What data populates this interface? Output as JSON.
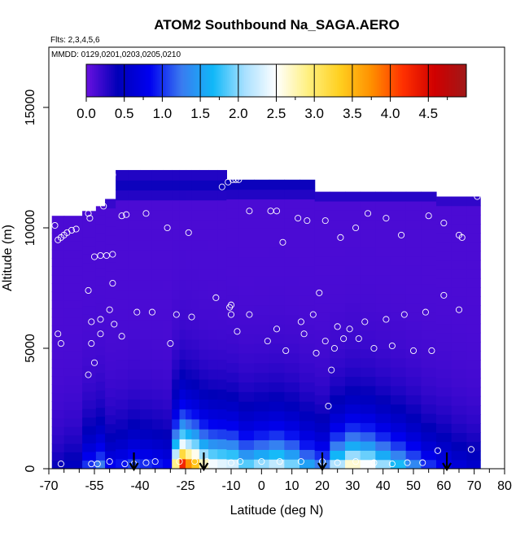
{
  "chart_data": {
    "type": "heatmap",
    "title": "ATOM2 Southbound Na_SAGA.AERO",
    "flights_note": "Flts: 2,3,4,5,6",
    "dates_note": "MMDD: 0129,0201,0203,0205,0210",
    "xlabel": "Latitude (deg N)",
    "ylabel": "Altitude (m)",
    "xlim": [
      -70,
      80
    ],
    "ylim": [
      0,
      17500
    ],
    "x_ticks": [
      -70,
      -55,
      -40,
      -25,
      -10,
      0,
      10,
      20,
      30,
      40,
      50,
      60,
      70,
      80
    ],
    "x_minor_ticks": [
      -65,
      -60,
      -50,
      -45,
      -35,
      -30,
      -20,
      -15,
      -5,
      5,
      15,
      25,
      35,
      45,
      55,
      65,
      75
    ],
    "y_ticks": [
      0,
      5000,
      10000,
      15000
    ],
    "colorbar": {
      "min": 0,
      "max": 5,
      "ticks": [
        0.0,
        0.5,
        1.0,
        1.5,
        2.0,
        2.5,
        3.0,
        3.5,
        4.0,
        4.5
      ],
      "tick_labels": [
        "0.0",
        "0.5",
        "1.0",
        "1.5",
        "2.0",
        "2.5",
        "3.0",
        "3.5",
        "4.0",
        "4.5"
      ],
      "colors": [
        "#6a10e0",
        "#0000b8",
        "#0000f0",
        "#3a7af0",
        "#10b8f8",
        "#a8e0ff",
        "#ffffff",
        "#fff080",
        "#ffd020",
        "#ff9000",
        "#ff3000",
        "#d00000",
        "#a01818"
      ]
    },
    "downward_arrows_lat": [
      -42,
      -19,
      20,
      61
    ],
    "field_columns": [
      {
        "lat": -68,
        "top": 10500,
        "boundary": 0.3
      },
      {
        "lat": -62,
        "top": 10500,
        "boundary": 0.4
      },
      {
        "lat": -56,
        "top": 10700,
        "boundary": 1.0
      },
      {
        "lat": -53,
        "top": 10900,
        "boundary": 1.3
      },
      {
        "lat": -50,
        "top": 11200,
        "boundary": 0.8
      },
      {
        "lat": -46,
        "top": 12400,
        "boundary": 0.9
      },
      {
        "lat": -42,
        "top": 12400,
        "boundary": 1.1
      },
      {
        "lat": -38,
        "top": 12400,
        "boundary": 1.0
      },
      {
        "lat": -34,
        "top": 12400,
        "boundary": 0.9
      },
      {
        "lat": -31,
        "top": 12400,
        "boundary": 0.8
      },
      {
        "lat": -28,
        "top": 12400,
        "boundary": 3.2
      },
      {
        "lat": -26,
        "top": 12400,
        "boundary": 4.8
      },
      {
        "lat": -24,
        "top": 12400,
        "boundary": 4.2
      },
      {
        "lat": -22,
        "top": 12400,
        "boundary": 3.8
      },
      {
        "lat": -19,
        "top": 12400,
        "boundary": 3.0
      },
      {
        "lat": -16,
        "top": 12400,
        "boundary": 2.7
      },
      {
        "lat": -13,
        "top": 12400,
        "boundary": 2.6
      },
      {
        "lat": -10,
        "top": 12000,
        "boundary": 2.5
      },
      {
        "lat": -5,
        "top": 12000,
        "boundary": 2.0
      },
      {
        "lat": 0,
        "top": 12000,
        "boundary": 2.2
      },
      {
        "lat": 5,
        "top": 12000,
        "boundary": 2.4
      },
      {
        "lat": 10,
        "top": 12000,
        "boundary": 2.1
      },
      {
        "lat": 15,
        "top": 12000,
        "boundary": 1.6
      },
      {
        "lat": 20,
        "top": 11500,
        "boundary": 1.3
      },
      {
        "lat": 25,
        "top": 11500,
        "boundary": 2.3
      },
      {
        "lat": 30,
        "top": 11500,
        "boundary": 2.9
      },
      {
        "lat": 35,
        "top": 11500,
        "boundary": 2.7
      },
      {
        "lat": 40,
        "top": 11500,
        "boundary": 2.2
      },
      {
        "lat": 45,
        "top": 11500,
        "boundary": 1.8
      },
      {
        "lat": 50,
        "top": 11500,
        "boundary": 1.4
      },
      {
        "lat": 55,
        "top": 11500,
        "boundary": 1.0
      },
      {
        "lat": 60,
        "top": 11300,
        "boundary": 0.8
      },
      {
        "lat": 65,
        "top": 11300,
        "boundary": 0.6
      },
      {
        "lat": 70,
        "top": 11300,
        "boundary": 0.5
      }
    ],
    "flight_samples": [
      {
        "lat": -68,
        "alt": 10100
      },
      {
        "lat": -67,
        "alt": 9500
      },
      {
        "lat": -66,
        "alt": 9600
      },
      {
        "lat": -65,
        "alt": 9700
      },
      {
        "lat": -64,
        "alt": 9800
      },
      {
        "lat": -62.5,
        "alt": 9900
      },
      {
        "lat": -61,
        "alt": 9950
      },
      {
        "lat": -57,
        "alt": 10600
      },
      {
        "lat": -56.5,
        "alt": 10400
      },
      {
        "lat": -55,
        "alt": 8800
      },
      {
        "lat": -53,
        "alt": 8850
      },
      {
        "lat": -51,
        "alt": 8850
      },
      {
        "lat": -49,
        "alt": 8900
      },
      {
        "lat": -54,
        "alt": 11800
      },
      {
        "lat": -52,
        "alt": 12000
      },
      {
        "lat": -49,
        "alt": 12200
      },
      {
        "lat": -52,
        "alt": 10900
      },
      {
        "lat": -46,
        "alt": 10500
      },
      {
        "lat": -44.5,
        "alt": 10550
      },
      {
        "lat": -38,
        "alt": 10600
      },
      {
        "lat": -31,
        "alt": 10000
      },
      {
        "lat": -24,
        "alt": 9800
      },
      {
        "lat": -13,
        "alt": 11700
      },
      {
        "lat": -11,
        "alt": 11900
      },
      {
        "lat": -9.5,
        "alt": 12000
      },
      {
        "lat": -8.5,
        "alt": 12000
      },
      {
        "lat": -7.5,
        "alt": 12000
      },
      {
        "lat": -4,
        "alt": 10700
      },
      {
        "lat": 3,
        "alt": 10700
      },
      {
        "lat": 5,
        "alt": 10700
      },
      {
        "lat": 7,
        "alt": 9400
      },
      {
        "lat": 12,
        "alt": 10400
      },
      {
        "lat": 15,
        "alt": 10300
      },
      {
        "lat": 21,
        "alt": 10300
      },
      {
        "lat": 26,
        "alt": 9600
      },
      {
        "lat": 31,
        "alt": 10000
      },
      {
        "lat": 35,
        "alt": 10600
      },
      {
        "lat": 41,
        "alt": 10400
      },
      {
        "lat": 46,
        "alt": 9700
      },
      {
        "lat": 55,
        "alt": 10500
      },
      {
        "lat": 60,
        "alt": 10200
      },
      {
        "lat": 65,
        "alt": 9700
      },
      {
        "lat": 66,
        "alt": 9600
      },
      {
        "lat": 71,
        "alt": 11300
      },
      {
        "lat": 74,
        "alt": 11200
      },
      {
        "lat": -49,
        "alt": 7700
      },
      {
        "lat": -57,
        "alt": 7400
      },
      {
        "lat": -50,
        "alt": 6600
      },
      {
        "lat": -48.5,
        "alt": 6000
      },
      {
        "lat": -56,
        "alt": 6100
      },
      {
        "lat": -53,
        "alt": 6200
      },
      {
        "lat": -41,
        "alt": 6500
      },
      {
        "lat": -36,
        "alt": 6500
      },
      {
        "lat": -28,
        "alt": 6400
      },
      {
        "lat": -23,
        "alt": 6300
      },
      {
        "lat": -15,
        "alt": 7100
      },
      {
        "lat": -10,
        "alt": 6800
      },
      {
        "lat": -10.5,
        "alt": 6700
      },
      {
        "lat": -10,
        "alt": 6400
      },
      {
        "lat": -4,
        "alt": 6400
      },
      {
        "lat": -8,
        "alt": 5700
      },
      {
        "lat": 2,
        "alt": 5300
      },
      {
        "lat": 5,
        "alt": 5800
      },
      {
        "lat": 8,
        "alt": 4900
      },
      {
        "lat": 13,
        "alt": 6100
      },
      {
        "lat": 14,
        "alt": 5600
      },
      {
        "lat": 17,
        "alt": 6400
      },
      {
        "lat": 18,
        "alt": 4800
      },
      {
        "lat": 19,
        "alt": 7300
      },
      {
        "lat": 21,
        "alt": 5300
      },
      {
        "lat": 23,
        "alt": 4100
      },
      {
        "lat": 24,
        "alt": 5000
      },
      {
        "lat": 25,
        "alt": 5900
      },
      {
        "lat": 27,
        "alt": 5400
      },
      {
        "lat": 29,
        "alt": 5800
      },
      {
        "lat": 32,
        "alt": 5400
      },
      {
        "lat": 34,
        "alt": 6100
      },
      {
        "lat": 37,
        "alt": 5000
      },
      {
        "lat": 41,
        "alt": 6200
      },
      {
        "lat": 43,
        "alt": 5100
      },
      {
        "lat": 47,
        "alt": 6400
      },
      {
        "lat": 50,
        "alt": 4900
      },
      {
        "lat": 54,
        "alt": 6500
      },
      {
        "lat": 56,
        "alt": 4900
      },
      {
        "lat": 60,
        "alt": 7200
      },
      {
        "lat": 65,
        "alt": 6600
      },
      {
        "lat": -67,
        "alt": 5600
      },
      {
        "lat": -66,
        "alt": 5200
      },
      {
        "lat": -56,
        "alt": 5200
      },
      {
        "lat": -53,
        "alt": 5600
      },
      {
        "lat": -46,
        "alt": 5500
      },
      {
        "lat": -30,
        "alt": 5200
      },
      {
        "lat": -57,
        "alt": 3900
      },
      {
        "lat": -55,
        "alt": 4400
      },
      {
        "lat": 22,
        "alt": 2600
      },
      {
        "lat": -66,
        "alt": 200
      },
      {
        "lat": -56,
        "alt": 200
      },
      {
        "lat": -54,
        "alt": 200
      },
      {
        "lat": -50,
        "alt": 300
      },
      {
        "lat": -45,
        "alt": 200
      },
      {
        "lat": -42,
        "alt": 200
      },
      {
        "lat": -38,
        "alt": 250
      },
      {
        "lat": -35,
        "alt": 300
      },
      {
        "lat": -27,
        "alt": 300
      },
      {
        "lat": -22,
        "alt": 300
      },
      {
        "lat": -18,
        "alt": 300
      },
      {
        "lat": -10,
        "alt": 250
      },
      {
        "lat": -7,
        "alt": 300
      },
      {
        "lat": 0,
        "alt": 300
      },
      {
        "lat": 6,
        "alt": 300
      },
      {
        "lat": 13,
        "alt": 300
      },
      {
        "lat": 20,
        "alt": 300
      },
      {
        "lat": 25,
        "alt": 250
      },
      {
        "lat": 31,
        "alt": 300
      },
      {
        "lat": 37,
        "alt": 250
      },
      {
        "lat": 43,
        "alt": 200
      },
      {
        "lat": 48,
        "alt": 250
      },
      {
        "lat": 53,
        "alt": 250
      },
      {
        "lat": 58,
        "alt": 750
      },
      {
        "lat": 69,
        "alt": 800
      }
    ]
  }
}
